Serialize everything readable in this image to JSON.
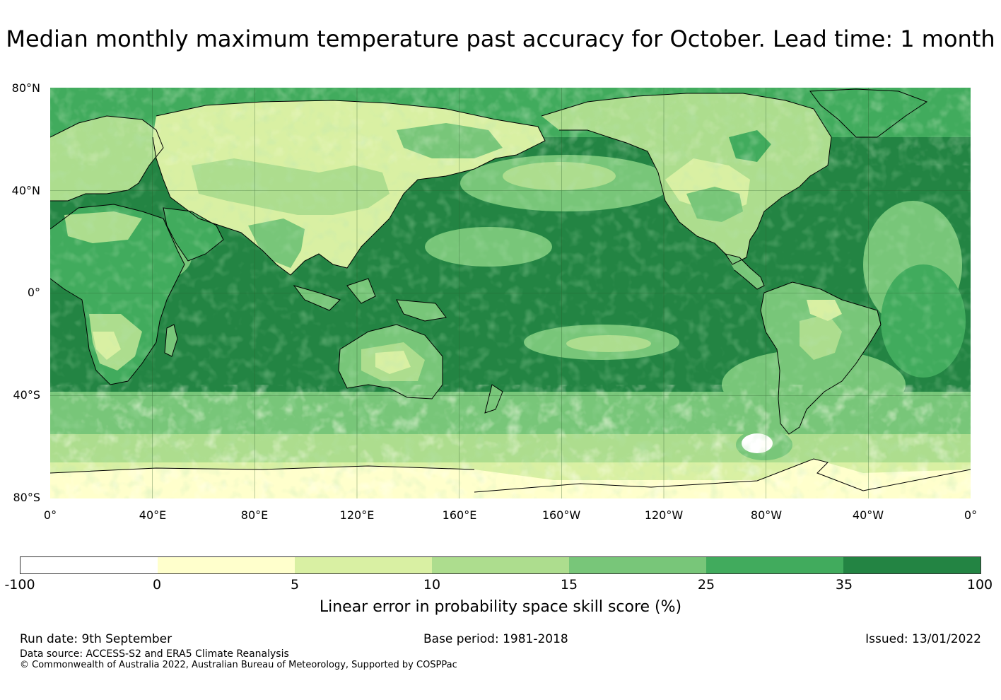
{
  "title": "Median monthly maximum temperature past accuracy for October. Lead time: 1 month",
  "map": {
    "lat_labels": [
      "80°N",
      "40°N",
      "0°",
      "40°S",
      "80°S"
    ],
    "lon_labels": [
      "0°",
      "40°E",
      "80°E",
      "120°E",
      "160°E",
      "160°W",
      "120°W",
      "80°W",
      "40°W",
      "0°"
    ],
    "colors": {
      "ocean_skill": "#238443",
      "land_high": "#41ab5d",
      "land_mid": "#78c679",
      "land_low": "#addd8e",
      "near_zero": "#d9f0a3",
      "zero_band": "#ffffcc",
      "negative": "#ffffff",
      "coastline": "#000000",
      "gridline": "#2a5a2a"
    }
  },
  "colorbar": {
    "tick_labels": [
      "-100",
      "0",
      "5",
      "10",
      "15",
      "25",
      "35",
      "100"
    ],
    "colors": [
      "#ffffff",
      "#ffffcc",
      "#d9f0a3",
      "#addd8e",
      "#78c679",
      "#41ab5d",
      "#238443"
    ],
    "label": "Linear error in probability space skill score (%)"
  },
  "footer": {
    "run_date": "Run date: 9th September",
    "base_period": "Base period: 1981-2018",
    "issued": "Issued: 13/01/2022",
    "data_source": "Data source: ACCESS-S2 and ERA5 Climate Reanalysis",
    "copyright": "© Commonwealth of Australia 2022, Australian Bureau of Meteorology, Supported by COSPPac"
  }
}
